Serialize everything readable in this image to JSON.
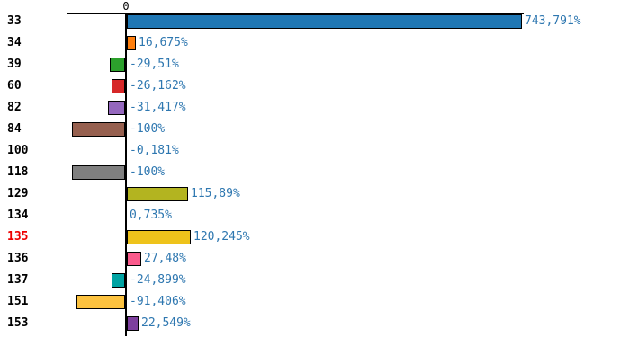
{
  "chart_data": {
    "type": "bar",
    "orientation": "horizontal",
    "title": "",
    "xlabel": "",
    "ylabel": "",
    "zero_tick_label": "0",
    "unit": "%",
    "value_label_color": "#2e77b0",
    "axis_color": "#000000",
    "grid": false,
    "legend": false,
    "rows": [
      {
        "category": "33",
        "category_color": "#000000",
        "label": "743,791%",
        "value": 743.791,
        "color": "#1f77b4"
      },
      {
        "category": "34",
        "category_color": "#000000",
        "label": "16,675%",
        "value": 16.675,
        "color": "#ff7f0e"
      },
      {
        "category": "39",
        "category_color": "#000000",
        "label": "-29,51%",
        "value": -29.51,
        "color": "#2ca02c"
      },
      {
        "category": "60",
        "category_color": "#000000",
        "label": "-26,162%",
        "value": -26.162,
        "color": "#d62728"
      },
      {
        "category": "82",
        "category_color": "#000000",
        "label": "-31,417%",
        "value": -31.417,
        "color": "#9467bd"
      },
      {
        "category": "84",
        "category_color": "#000000",
        "label": "-100%",
        "value": -100,
        "color": "#96604f"
      },
      {
        "category": "100",
        "category_color": "#000000",
        "label": "-0,181%",
        "value": -0.181,
        "color": null
      },
      {
        "category": "118",
        "category_color": "#000000",
        "label": "-100%",
        "value": -100,
        "color": "#7f7f7f"
      },
      {
        "category": "129",
        "category_color": "#000000",
        "label": "115,89%",
        "value": 115.89,
        "color": "#b3b420"
      },
      {
        "category": "134",
        "category_color": "#000000",
        "label": "0,735%",
        "value": 0.735,
        "color": null
      },
      {
        "category": "135",
        "category_color": "#ee0000",
        "label": "120,245%",
        "value": 120.245,
        "color": "#eec31b"
      },
      {
        "category": "136",
        "category_color": "#000000",
        "label": "27,48%",
        "value": 27.48,
        "color": "#fa5a8c"
      },
      {
        "category": "137",
        "category_color": "#000000",
        "label": "-24,899%",
        "value": -24.899,
        "color": "#00a3a3"
      },
      {
        "category": "151",
        "category_color": "#000000",
        "label": "-91,406%",
        "value": -91.406,
        "color": "#fcc23f"
      },
      {
        "category": "153",
        "category_color": "#000000",
        "label": "22,549%",
        "value": 22.549,
        "color": "#7d3f9e"
      }
    ]
  }
}
